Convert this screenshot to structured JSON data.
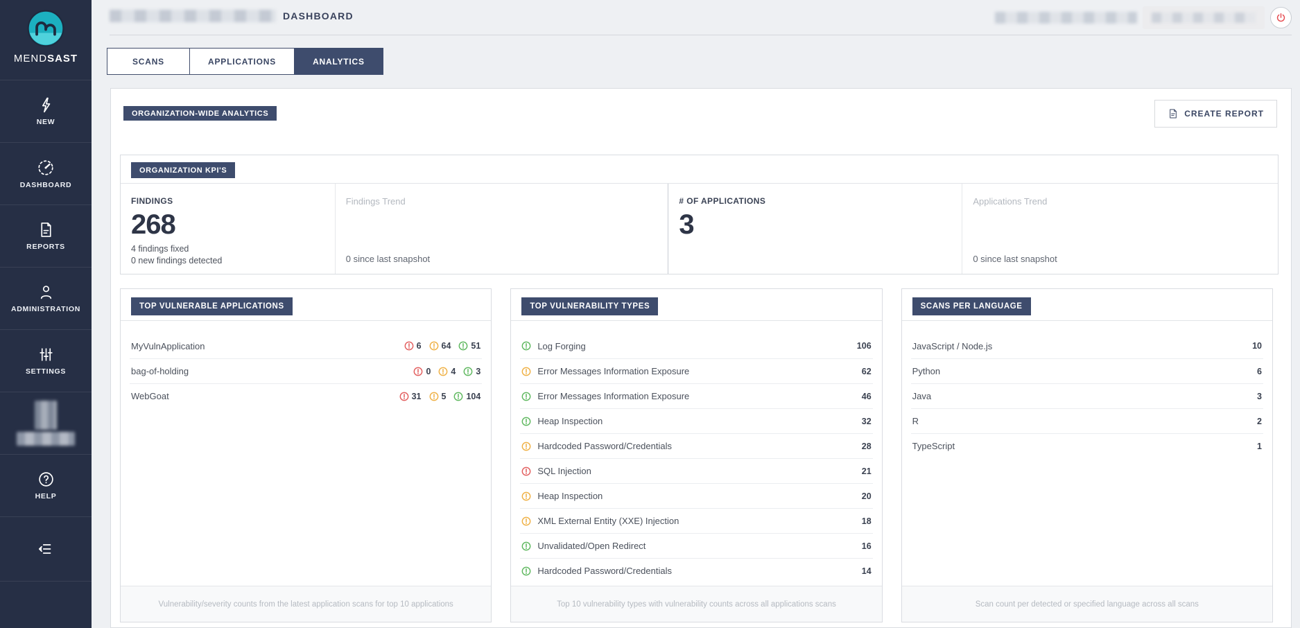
{
  "sidebar": {
    "brand": {
      "regular": "MEND",
      "bold": "SAST"
    },
    "items": [
      {
        "label": "NEW",
        "icon": "lightning-icon"
      },
      {
        "label": "DASHBOARD",
        "icon": "gauge-icon"
      },
      {
        "label": "REPORTS",
        "icon": "report-document-icon"
      },
      {
        "label": "ADMINISTRATION",
        "icon": "user-icon"
      },
      {
        "label": "SETTINGS",
        "icon": "sliders-icon"
      },
      {
        "label": "HELP",
        "icon": "help-circle-icon"
      }
    ]
  },
  "header": {
    "title": "DASHBOARD"
  },
  "tabs": [
    {
      "label": "SCANS",
      "active": false
    },
    {
      "label": "APPLICATIONS",
      "active": false
    },
    {
      "label": "ANALYTICS",
      "active": true
    }
  ],
  "analytics": {
    "section_badge": "ORGANIZATION-WIDE ANALYTICS",
    "create_report_label": "CREATE REPORT",
    "kpis": {
      "badge": "ORGANIZATION KPI'S",
      "findings_label": "FINDINGS",
      "findings_value": "268",
      "findings_fixed": "4 findings fixed",
      "findings_new": "0 new findings detected",
      "findings_trend_label": "Findings Trend",
      "findings_trend_value": "0 since last snapshot",
      "applications_label": "# OF APPLICATIONS",
      "applications_value": "3",
      "applications_trend_label": "Applications Trend",
      "applications_trend_value": "0 since last snapshot"
    },
    "top_vulnerable_applications": {
      "badge": "TOP VULNERABLE APPLICATIONS",
      "rows": [
        {
          "name": "MyVulnApplication",
          "high": 6,
          "medium": 64,
          "low": 51
        },
        {
          "name": "bag-of-holding",
          "high": 0,
          "medium": 4,
          "low": 3
        },
        {
          "name": "WebGoat",
          "high": 31,
          "medium": 5,
          "low": 104
        }
      ],
      "footer": "Vulnerability/severity counts from the latest application scans for top 10 applications"
    },
    "top_vulnerability_types": {
      "badge": "TOP VULNERABILITY TYPES",
      "rows": [
        {
          "severity": "low",
          "name": "Log Forging",
          "count": 106
        },
        {
          "severity": "medium",
          "name": "Error Messages Information Exposure",
          "count": 62
        },
        {
          "severity": "low",
          "name": "Error Messages Information Exposure",
          "count": 46
        },
        {
          "severity": "low",
          "name": "Heap Inspection",
          "count": 32
        },
        {
          "severity": "medium",
          "name": "Hardcoded Password/Credentials",
          "count": 28
        },
        {
          "severity": "high",
          "name": "SQL Injection",
          "count": 21
        },
        {
          "severity": "medium",
          "name": "Heap Inspection",
          "count": 20
        },
        {
          "severity": "medium",
          "name": "XML External Entity (XXE) Injection",
          "count": 18
        },
        {
          "severity": "low",
          "name": "Unvalidated/Open Redirect",
          "count": 16
        },
        {
          "severity": "low",
          "name": "Hardcoded Password/Credentials",
          "count": 14
        }
      ],
      "footer": "Top 10 vulnerability types with vulnerability counts across all applications scans"
    },
    "scans_per_language": {
      "badge": "SCANS PER LANGUAGE",
      "rows": [
        {
          "name": "JavaScript / Node.js",
          "count": 10
        },
        {
          "name": "Python",
          "count": 6
        },
        {
          "name": "Java",
          "count": 3
        },
        {
          "name": "R",
          "count": 2
        },
        {
          "name": "TypeScript",
          "count": 1
        }
      ],
      "footer": "Scan count per detected or specified language across all scans"
    }
  },
  "colors": {
    "severity_high": "#e25c5c",
    "severity_medium": "#efaf41",
    "severity_low": "#5cb75c",
    "accent_navy": "#3e4c6d",
    "sidebar_navy": "#262f45",
    "logo_teal": "#1cb0c0",
    "power_red": "#e5484d"
  }
}
